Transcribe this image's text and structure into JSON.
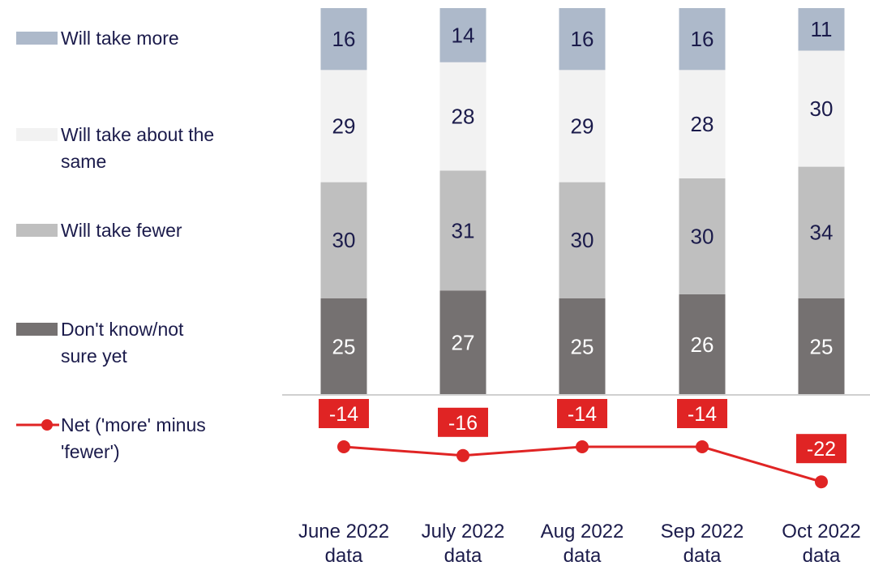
{
  "chart_data": {
    "type": "bar",
    "stacked": true,
    "categories": [
      [
        "June 2022",
        "data"
      ],
      [
        "July 2022",
        "data"
      ],
      [
        "Aug 2022",
        "data"
      ],
      [
        "Sep 2022",
        "data"
      ],
      [
        "Oct 2022",
        "data"
      ]
    ],
    "series": [
      {
        "name": "Don't know/not sure yet",
        "legend_lines": [
          "Don't know/not",
          "sure yet"
        ],
        "color": "#757171",
        "label_color": "#ffffff",
        "values": [
          25,
          27,
          25,
          26,
          25
        ]
      },
      {
        "name": "Will take fewer",
        "legend_lines": [
          "Will take fewer"
        ],
        "color": "#bfbfbf",
        "label_color": "#1b1b4b",
        "values": [
          30,
          31,
          30,
          30,
          34
        ]
      },
      {
        "name": "Will take about the same",
        "legend_lines": [
          "Will take about the",
          "same"
        ],
        "color": "#f2f2f2",
        "label_color": "#1b1b4b",
        "values": [
          29,
          28,
          29,
          28,
          30
        ]
      },
      {
        "name": "Will take more",
        "legend_lines": [
          "Will take more"
        ],
        "color": "#adb9ca",
        "label_color": "#1b1b4b",
        "values": [
          16,
          14,
          16,
          16,
          11
        ]
      }
    ],
    "line_series": {
      "name": "Net ('more' minus 'fewer')",
      "legend_lines": [
        "Net ('more' minus",
        "'fewer')"
      ],
      "color": "#e02424",
      "values": [
        -14,
        -16,
        -14,
        -14,
        -22
      ]
    },
    "legend_position": "left",
    "grid": false
  }
}
